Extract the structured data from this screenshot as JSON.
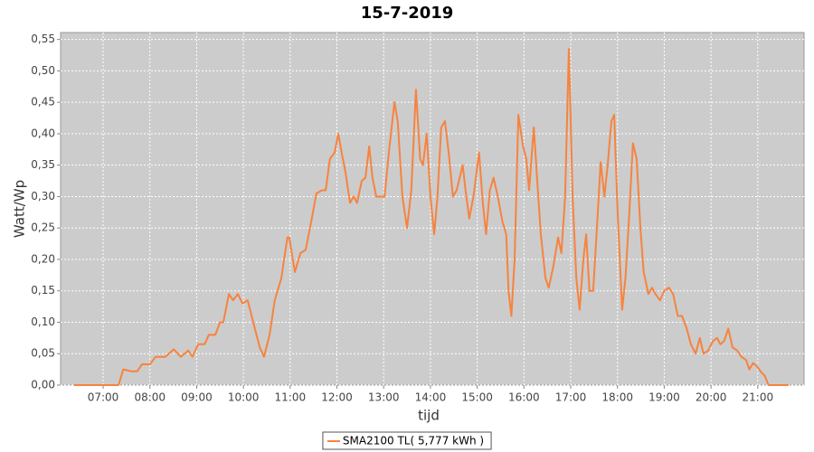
{
  "chart_data": {
    "type": "line",
    "title": "15-7-2019",
    "x_label": "tijd",
    "y_label": "Watt/Wp",
    "x": [
      6.38,
      7.33,
      7.43,
      7.6,
      7.73,
      7.83,
      8.0,
      8.12,
      8.33,
      8.51,
      8.66,
      8.82,
      8.91,
      9.03,
      9.17,
      9.26,
      9.4,
      9.5,
      9.57,
      9.69,
      9.78,
      9.88,
      9.98,
      10.09,
      10.21,
      10.35,
      10.44,
      10.56,
      10.67,
      10.81,
      10.94,
      10.98,
      11.1,
      11.22,
      11.33,
      11.45,
      11.56,
      11.68,
      11.76,
      11.85,
      11.95,
      12.03,
      12.1,
      12.18,
      12.28,
      12.36,
      12.43,
      12.53,
      12.61,
      12.69,
      12.76,
      12.84,
      12.96,
      13.02,
      13.11,
      13.23,
      13.3,
      13.4,
      13.5,
      13.59,
      13.69,
      13.78,
      13.84,
      13.92,
      14.0,
      14.08,
      14.15,
      14.23,
      14.31,
      14.39,
      14.48,
      14.56,
      14.69,
      14.75,
      14.83,
      14.92,
      15.04,
      15.12,
      15.19,
      15.27,
      15.35,
      15.44,
      15.54,
      15.62,
      15.67,
      15.73,
      15.8,
      15.88,
      15.98,
      16.05,
      16.11,
      16.21,
      16.28,
      16.36,
      16.46,
      16.53,
      16.63,
      16.73,
      16.8,
      16.88,
      16.96,
      17.04,
      17.12,
      17.19,
      17.27,
      17.33,
      17.4,
      17.48,
      17.56,
      17.64,
      17.72,
      17.79,
      17.87,
      17.93,
      18.0,
      18.1,
      18.17,
      18.25,
      18.33,
      18.41,
      18.49,
      18.56,
      18.66,
      18.74,
      18.81,
      18.91,
      19.0,
      19.1,
      19.19,
      19.29,
      19.38,
      19.48,
      19.57,
      19.67,
      19.76,
      19.84,
      19.94,
      20.04,
      20.13,
      20.2,
      20.28,
      20.37,
      20.46,
      20.56,
      20.65,
      20.75,
      20.82,
      20.9,
      20.98,
      21.08,
      21.15,
      21.23,
      21.66
    ],
    "series": [
      {
        "name": "SMA2100 TL( 5,777 kWh )",
        "color": "#f7833f",
        "values": [
          0,
          0,
          0.025,
          0.022,
          0.022,
          0.033,
          0.033,
          0.045,
          0.045,
          0.057,
          0.045,
          0.055,
          0.045,
          0.065,
          0.065,
          0.08,
          0.08,
          0.1,
          0.1,
          0.145,
          0.135,
          0.145,
          0.13,
          0.135,
          0.1,
          0.06,
          0.045,
          0.08,
          0.135,
          0.17,
          0.235,
          0.235,
          0.18,
          0.21,
          0.215,
          0.26,
          0.305,
          0.31,
          0.31,
          0.36,
          0.37,
          0.4,
          0.37,
          0.34,
          0.29,
          0.3,
          0.29,
          0.325,
          0.33,
          0.38,
          0.33,
          0.3,
          0.3,
          0.3,
          0.37,
          0.45,
          0.42,
          0.3,
          0.25,
          0.31,
          0.47,
          0.36,
          0.35,
          0.4,
          0.3,
          0.24,
          0.3,
          0.41,
          0.42,
          0.37,
          0.3,
          0.31,
          0.35,
          0.31,
          0.265,
          0.3,
          0.37,
          0.29,
          0.24,
          0.31,
          0.33,
          0.3,
          0.26,
          0.24,
          0.15,
          0.11,
          0.2,
          0.43,
          0.38,
          0.36,
          0.31,
          0.41,
          0.33,
          0.24,
          0.17,
          0.155,
          0.19,
          0.235,
          0.21,
          0.3,
          0.535,
          0.3,
          0.17,
          0.12,
          0.2,
          0.24,
          0.15,
          0.15,
          0.25,
          0.355,
          0.3,
          0.35,
          0.42,
          0.43,
          0.28,
          0.12,
          0.17,
          0.27,
          0.385,
          0.36,
          0.25,
          0.18,
          0.145,
          0.155,
          0.145,
          0.135,
          0.15,
          0.155,
          0.145,
          0.11,
          0.11,
          0.09,
          0.065,
          0.05,
          0.075,
          0.05,
          0.055,
          0.07,
          0.075,
          0.065,
          0.07,
          0.09,
          0.06,
          0.055,
          0.045,
          0.04,
          0.025,
          0.035,
          0.03,
          0.02,
          0.015,
          0,
          0
        ]
      }
    ],
    "xlim": [
      6.09,
      21.99
    ],
    "xticks": [
      {
        "value": 7,
        "label": "07:00"
      },
      {
        "value": 8,
        "label": "08:00"
      },
      {
        "value": 9,
        "label": "09:00"
      },
      {
        "value": 10,
        "label": "10:00"
      },
      {
        "value": 11,
        "label": "11:00"
      },
      {
        "value": 12,
        "label": "12:00"
      },
      {
        "value": 13,
        "label": "13:00"
      },
      {
        "value": 14,
        "label": "14:00"
      },
      {
        "value": 15,
        "label": "15:00"
      },
      {
        "value": 16,
        "label": "16:00"
      },
      {
        "value": 17,
        "label": "17:00"
      },
      {
        "value": 18,
        "label": "18:00"
      },
      {
        "value": 19,
        "label": "19:00"
      },
      {
        "value": 20,
        "label": "20:00"
      },
      {
        "value": 21,
        "label": "21:00"
      }
    ],
    "ylim": [
      0,
      0.561
    ],
    "yticks": [
      {
        "value": 0,
        "label": "0,00"
      },
      {
        "value": 0.05,
        "label": "0,05"
      },
      {
        "value": 0.1,
        "label": "0,10"
      },
      {
        "value": 0.15,
        "label": "0,15"
      },
      {
        "value": 0.2,
        "label": "0,20"
      },
      {
        "value": 0.25,
        "label": "0,25"
      },
      {
        "value": 0.3,
        "label": "0,30"
      },
      {
        "value": 0.35,
        "label": "0,35"
      },
      {
        "value": 0.4,
        "label": "0,40"
      },
      {
        "value": 0.45,
        "label": "0,45"
      },
      {
        "value": 0.5,
        "label": "0,50"
      },
      {
        "value": 0.55,
        "label": "0,55"
      }
    ],
    "grid": true,
    "legend": "bottom"
  }
}
